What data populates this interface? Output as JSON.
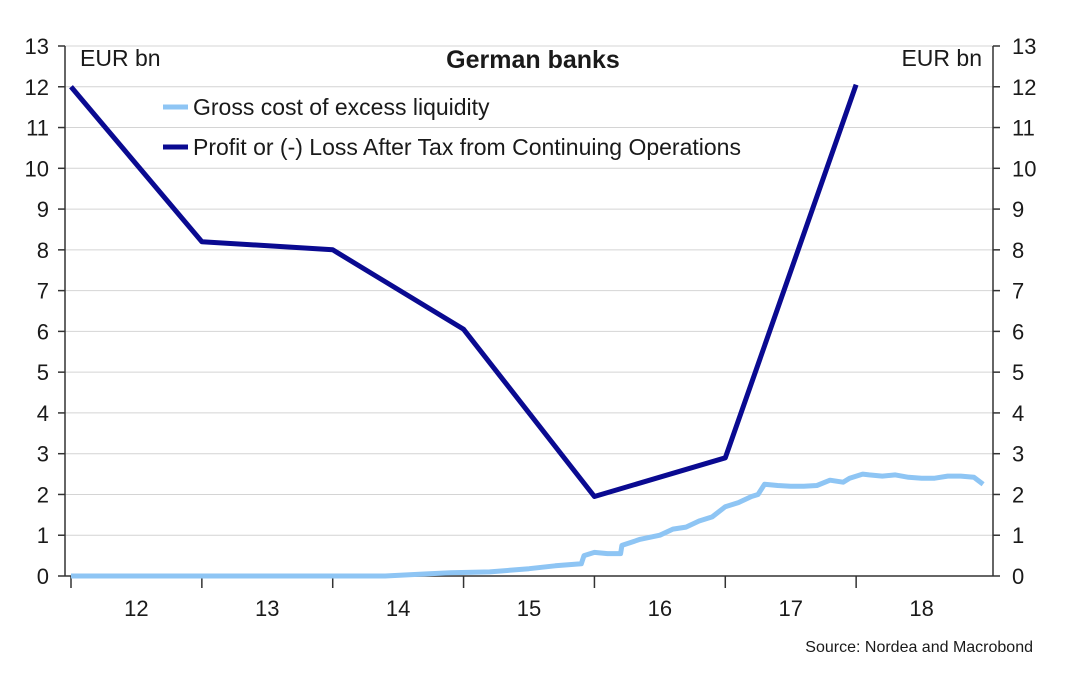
{
  "chart_data": {
    "type": "line",
    "title": "German banks",
    "left_unit": "EUR bn",
    "right_unit": "EUR bn",
    "source": "Source: Nordea and Macrobond",
    "ylim": [
      0,
      13
    ],
    "y_ticks": [
      0,
      1,
      2,
      3,
      4,
      5,
      6,
      7,
      8,
      9,
      10,
      11,
      12,
      13
    ],
    "xlim": [
      2011.5,
      2018.5
    ],
    "x_ticks": [
      {
        "label": "12",
        "value": 2012
      },
      {
        "label": "13",
        "value": 2013
      },
      {
        "label": "14",
        "value": 2014
      },
      {
        "label": "15",
        "value": 2015
      },
      {
        "label": "16",
        "value": 2016
      },
      {
        "label": "17",
        "value": 2017
      },
      {
        "label": "18",
        "value": 2018
      }
    ],
    "x_boundaries": [
      2011.5,
      2012.5,
      2013.5,
      2014.5,
      2015.5,
      2016.5,
      2017.5
    ],
    "series": [
      {
        "name": "Gross cost of excess liquidity",
        "color": "#8ec5f4",
        "x": [
          2011.5,
          2012.0,
          2013.0,
          2013.9,
          2014.2,
          2014.4,
          2014.7,
          2015.0,
          2015.2,
          2015.4,
          2015.42,
          2015.5,
          2015.6,
          2015.7,
          2015.71,
          2015.85,
          2016.0,
          2016.1,
          2016.2,
          2016.3,
          2016.4,
          2016.5,
          2016.6,
          2016.7,
          2016.75,
          2016.8,
          2016.9,
          2017.0,
          2017.1,
          2017.2,
          2017.3,
          2017.4,
          2017.45,
          2017.55,
          2017.6,
          2017.7,
          2017.8,
          2017.9,
          2018.0,
          2018.1,
          2018.2,
          2018.3,
          2018.4,
          2018.47
        ],
        "y": [
          0.0,
          0.0,
          0.0,
          0.0,
          0.05,
          0.08,
          0.1,
          0.18,
          0.25,
          0.3,
          0.5,
          0.58,
          0.55,
          0.55,
          0.75,
          0.9,
          1.0,
          1.15,
          1.2,
          1.35,
          1.45,
          1.7,
          1.8,
          1.95,
          2.0,
          2.25,
          2.22,
          2.2,
          2.2,
          2.22,
          2.35,
          2.3,
          2.4,
          2.5,
          2.48,
          2.45,
          2.48,
          2.42,
          2.4,
          2.4,
          2.45,
          2.45,
          2.42,
          2.25
        ]
      },
      {
        "name": "Profit or (-) Loss After Tax from Continuing Operations",
        "color": "#0a0a91",
        "x": [
          2011.5,
          2012.5,
          2013.5,
          2014.5,
          2015.5,
          2016.5,
          2017.5
        ],
        "y": [
          12.0,
          8.2,
          8.0,
          6.05,
          1.95,
          2.9,
          12.05
        ]
      }
    ]
  }
}
